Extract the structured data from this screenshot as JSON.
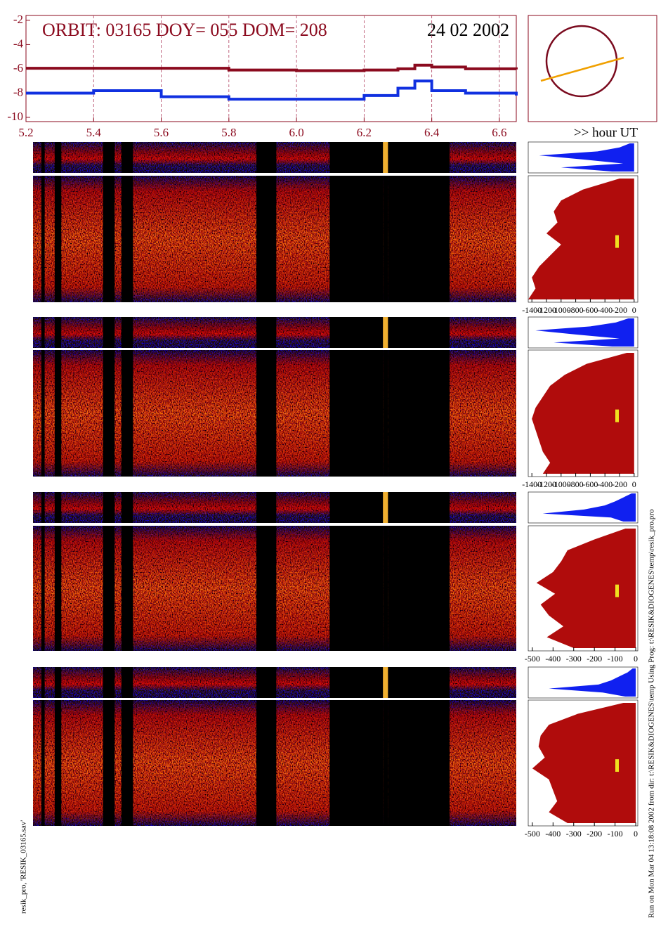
{
  "chart_data": [
    {
      "type": "line",
      "title": "ORBIT: 03165 DOY=  055 DOM=  208",
      "date": "24 02 2002",
      "xlabel": ">> hour UT",
      "xlim": [
        5.2,
        6.65
      ],
      "ylim": [
        -10.35,
        -1.6
      ],
      "xticks": [
        {
          "value": 5.2,
          "label": "5.2"
        },
        {
          "value": 5.4,
          "label": "5.4"
        },
        {
          "value": 5.6,
          "label": "5.6"
        },
        {
          "value": 5.8,
          "label": "5.8"
        },
        {
          "value": 6.0,
          "label": "6.0"
        },
        {
          "value": 6.2,
          "label": "6.2"
        },
        {
          "value": 6.4,
          "label": "6.4"
        },
        {
          "value": 6.6,
          "label": "6.6"
        }
      ],
      "yticks": [
        -10,
        -8,
        -6,
        -4,
        -2
      ],
      "grid": true,
      "series": [
        {
          "color": "#8b0a1e",
          "x": [
            5.2,
            5.5,
            5.8,
            6.0,
            6.2,
            6.3,
            6.35,
            6.4,
            6.5,
            6.65
          ],
          "values": [
            -5.95,
            -5.95,
            -6.1,
            -6.15,
            -6.1,
            -6.0,
            -5.7,
            -5.85,
            -6.0,
            -6.05
          ]
        },
        {
          "color": "#1030e0",
          "x": [
            5.2,
            5.4,
            5.6,
            5.8,
            6.0,
            6.2,
            6.3,
            6.35,
            6.4,
            6.5,
            6.65
          ],
          "values": [
            -8.0,
            -7.8,
            -8.3,
            -8.5,
            -8.5,
            -8.2,
            -7.6,
            -7.0,
            -7.8,
            -8.0,
            -8.2
          ]
        }
      ]
    },
    {
      "type": "hist",
      "xlim": [
        -1450,
        50
      ],
      "xticks": [
        -1400,
        -1200,
        -1000,
        -800,
        -600,
        -400,
        -200,
        0
      ],
      "strip": [
        -60,
        -200,
        -500,
        -1300,
        -700,
        -150,
        -1000,
        -300
      ],
      "values": [
        -200,
        -700,
        -1000,
        -1100,
        -1050,
        -1200,
        -1000,
        -1150,
        -1300,
        -1400,
        -1350,
        -1450
      ]
    },
    {
      "type": "hist",
      "xlim": [
        -1450,
        50
      ],
      "xticks": [
        -1400,
        -1200,
        -1000,
        -800,
        -600,
        -400,
        -200,
        0
      ],
      "strip": [
        -80,
        -250,
        -600,
        -1350,
        -800,
        -200,
        -1100,
        -300
      ],
      "values": [
        -100,
        -650,
        -950,
        -1150,
        -1250,
        -1350,
        -1400,
        -1350,
        -1300,
        -1250,
        -1150,
        -1250
      ]
    },
    {
      "type": "hist",
      "xlim": [
        -520,
        10
      ],
      "xticks": [
        -500,
        -400,
        -300,
        -200,
        -100,
        0
      ],
      "strip": [
        -20,
        -60,
        -100,
        -150,
        -250,
        -450,
        -120,
        -60
      ],
      "values": [
        -50,
        -200,
        -330,
        -360,
        -400,
        -480,
        -390,
        -460,
        -420,
        -350,
        -430,
        -300
      ]
    },
    {
      "type": "hist",
      "xlim": [
        -520,
        10
      ],
      "xticks": [
        -500,
        -400,
        -300,
        -200,
        -100,
        0
      ],
      "strip": [
        -15,
        -40,
        -80,
        -120,
        -180,
        -420,
        -160,
        -50
      ],
      "values": [
        -60,
        -280,
        -420,
        -460,
        -470,
        -440,
        -500,
        -420,
        -400,
        -380,
        -420,
        -330
      ]
    }
  ],
  "footer_left": "resik_pro, 'RESIK_03165.sav'",
  "footer_right": "Run on Mon Mar 04 13:18:08 2002  from dir: t:\\RESIK&DIOGENES\\temp Using Prog: t:\\RESIK&DIOGENES\\temp\\resik_pro.pro"
}
